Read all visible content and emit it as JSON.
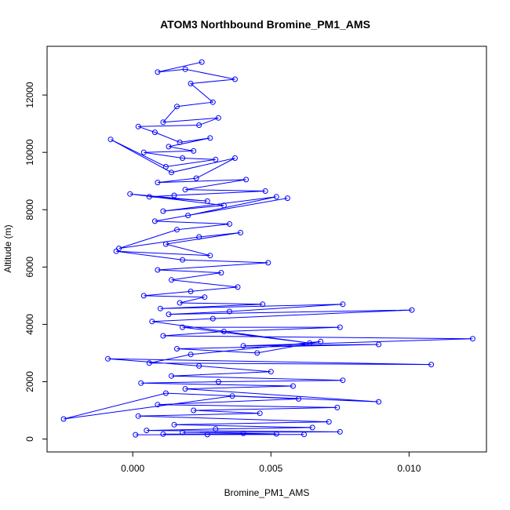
{
  "chart_data": {
    "type": "line",
    "title": "ATOM3 Northbound Bromine_PM1_AMS",
    "xlabel": "Bromine_PM1_AMS",
    "ylabel": "Altitude (m)",
    "xlim": [
      -0.0031,
      0.0128
    ],
    "ylim": [
      -450,
      13700
    ],
    "xticks": [
      0.0,
      0.005,
      0.01
    ],
    "xtick_labels": [
      "0.000",
      "0.005",
      "0.010"
    ],
    "yticks": [
      0,
      2000,
      4000,
      6000,
      8000,
      10000,
      12000
    ],
    "ytick_labels": [
      "0",
      "2000",
      "4000",
      "6000",
      "8000",
      "10000",
      "12000"
    ],
    "marker": "open-circle",
    "grid": false,
    "colors": {
      "series": "#0000ff",
      "axis": "#000000",
      "background": "#ffffff"
    },
    "series": [
      {
        "x": [
          0.0025,
          0.0009,
          0.0019,
          0.0037,
          0.0021,
          0.0029,
          0.0016,
          0.0011,
          0.0031,
          0.0024,
          0.0002,
          0.0008,
          0.0017,
          0.0028,
          0.0013,
          0.0022,
          0.0004,
          0.0018,
          0.003,
          0.0012,
          -0.0008,
          0.0014,
          0.0037,
          0.0023,
          0.0009,
          0.0041,
          0.0019,
          0.0048,
          0.0015,
          0.0006,
          0.0027,
          -0.0001,
          0.0033,
          0.0011,
          0.0052,
          0.002,
          0.0056,
          0.0008,
          0.0035,
          0.0016,
          -0.0005,
          0.0024,
          0.0039,
          0.0012,
          0.0028,
          -0.0006,
          0.0018,
          0.0049,
          0.0009,
          0.0032,
          0.0014,
          0.0038,
          0.0021,
          0.0004,
          0.0026,
          0.0017,
          0.0047,
          0.001,
          0.0076,
          0.0035,
          0.0013,
          0.0101,
          0.0029,
          0.0007,
          0.0064,
          0.0018,
          0.0075,
          0.0033,
          0.0011,
          0.0123,
          0.004,
          0.0089,
          0.0016,
          0.0045,
          0.0068,
          0.0021,
          0.0006,
          0.0108,
          -0.0009,
          0.0024,
          0.005,
          0.0014,
          0.0076,
          0.0031,
          0.0003,
          0.0058,
          0.0019,
          0.0089,
          0.0012,
          -0.0025,
          0.0036,
          0.006,
          0.0009,
          0.0074,
          0.0022,
          0.0046,
          0.0002,
          0.0071,
          0.0015,
          0.0065,
          0.003,
          0.0005,
          0.0075,
          0.0018,
          0.004,
          0.0052,
          0.0011,
          0.0062,
          0.0027,
          0.0001
        ],
        "y": [
          13150,
          12800,
          12900,
          12550,
          12400,
          11750,
          11600,
          11050,
          11200,
          10950,
          10900,
          10700,
          10350,
          10500,
          10200,
          10050,
          10000,
          9800,
          9750,
          9500,
          10450,
          9300,
          9800,
          9100,
          8950,
          9050,
          8700,
          8650,
          8500,
          8450,
          8300,
          8550,
          8150,
          7950,
          8450,
          7800,
          8400,
          7600,
          7500,
          7300,
          6650,
          7050,
          7200,
          6800,
          6400,
          6550,
          6250,
          6150,
          5900,
          5800,
          5550,
          5300,
          5150,
          5000,
          4950,
          4750,
          4700,
          4550,
          4700,
          4450,
          4350,
          4500,
          4200,
          4100,
          3350,
          3900,
          3900,
          3750,
          3600,
          3500,
          3250,
          3300,
          3150,
          3000,
          3400,
          2950,
          2650,
          2600,
          2800,
          2550,
          2350,
          2200,
          2050,
          2000,
          1950,
          1850,
          1750,
          1300,
          1600,
          700,
          1500,
          1400,
          1200,
          1100,
          1000,
          900,
          800,
          600,
          500,
          400,
          350,
          300,
          250,
          230,
          200,
          180,
          170,
          160,
          155,
          150
        ]
      }
    ]
  }
}
